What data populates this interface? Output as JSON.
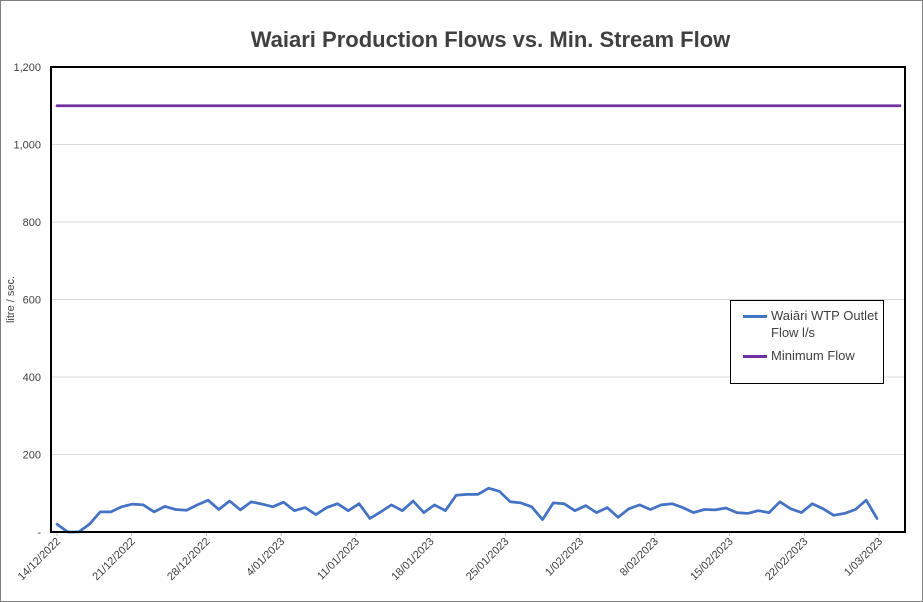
{
  "chart_data": {
    "type": "line",
    "title": "Waiari Production Flows vs. Min. Stream Flow",
    "xlabel": "",
    "ylabel": "litre / sec.",
    "ylim": [
      0,
      1200
    ],
    "yticks": [
      "-",
      "200",
      "400",
      "600",
      "800",
      "1,000",
      "1,200"
    ],
    "xticks": [
      "14/12/2022",
      "21/12/2022",
      "28/12/2022",
      "4/01/2023",
      "11/01/2023",
      "18/01/2023",
      "25/01/2023",
      "1/02/2023",
      "8/02/2023",
      "15/02/2023",
      "22/02/2023",
      "1/03/2023"
    ],
    "grid": true,
    "legend_position": "right",
    "series": [
      {
        "name": "Waiāri WTP Outlet Flow l/s",
        "color": "#4472c4",
        "values": [
          20,
          0,
          0,
          20,
          52,
          52,
          65,
          72,
          70,
          52,
          66,
          58,
          56,
          70,
          82,
          58,
          80,
          57,
          78,
          72,
          65,
          77,
          55,
          63,
          45,
          63,
          73,
          55,
          73,
          35,
          52,
          70,
          55,
          80,
          50,
          70,
          55,
          95,
          97,
          97,
          113,
          105,
          78,
          75,
          65,
          32,
          75,
          73,
          55,
          68,
          50,
          63,
          38,
          60,
          70,
          58,
          70,
          73,
          63,
          50,
          58,
          57,
          62,
          50,
          48,
          55,
          50,
          78,
          60,
          50,
          73,
          60,
          43,
          48,
          58,
          82,
          35
        ]
      },
      {
        "name": "Minimum Flow",
        "color": "#7030a0",
        "values": [
          1100,
          1100
        ]
      }
    ]
  }
}
